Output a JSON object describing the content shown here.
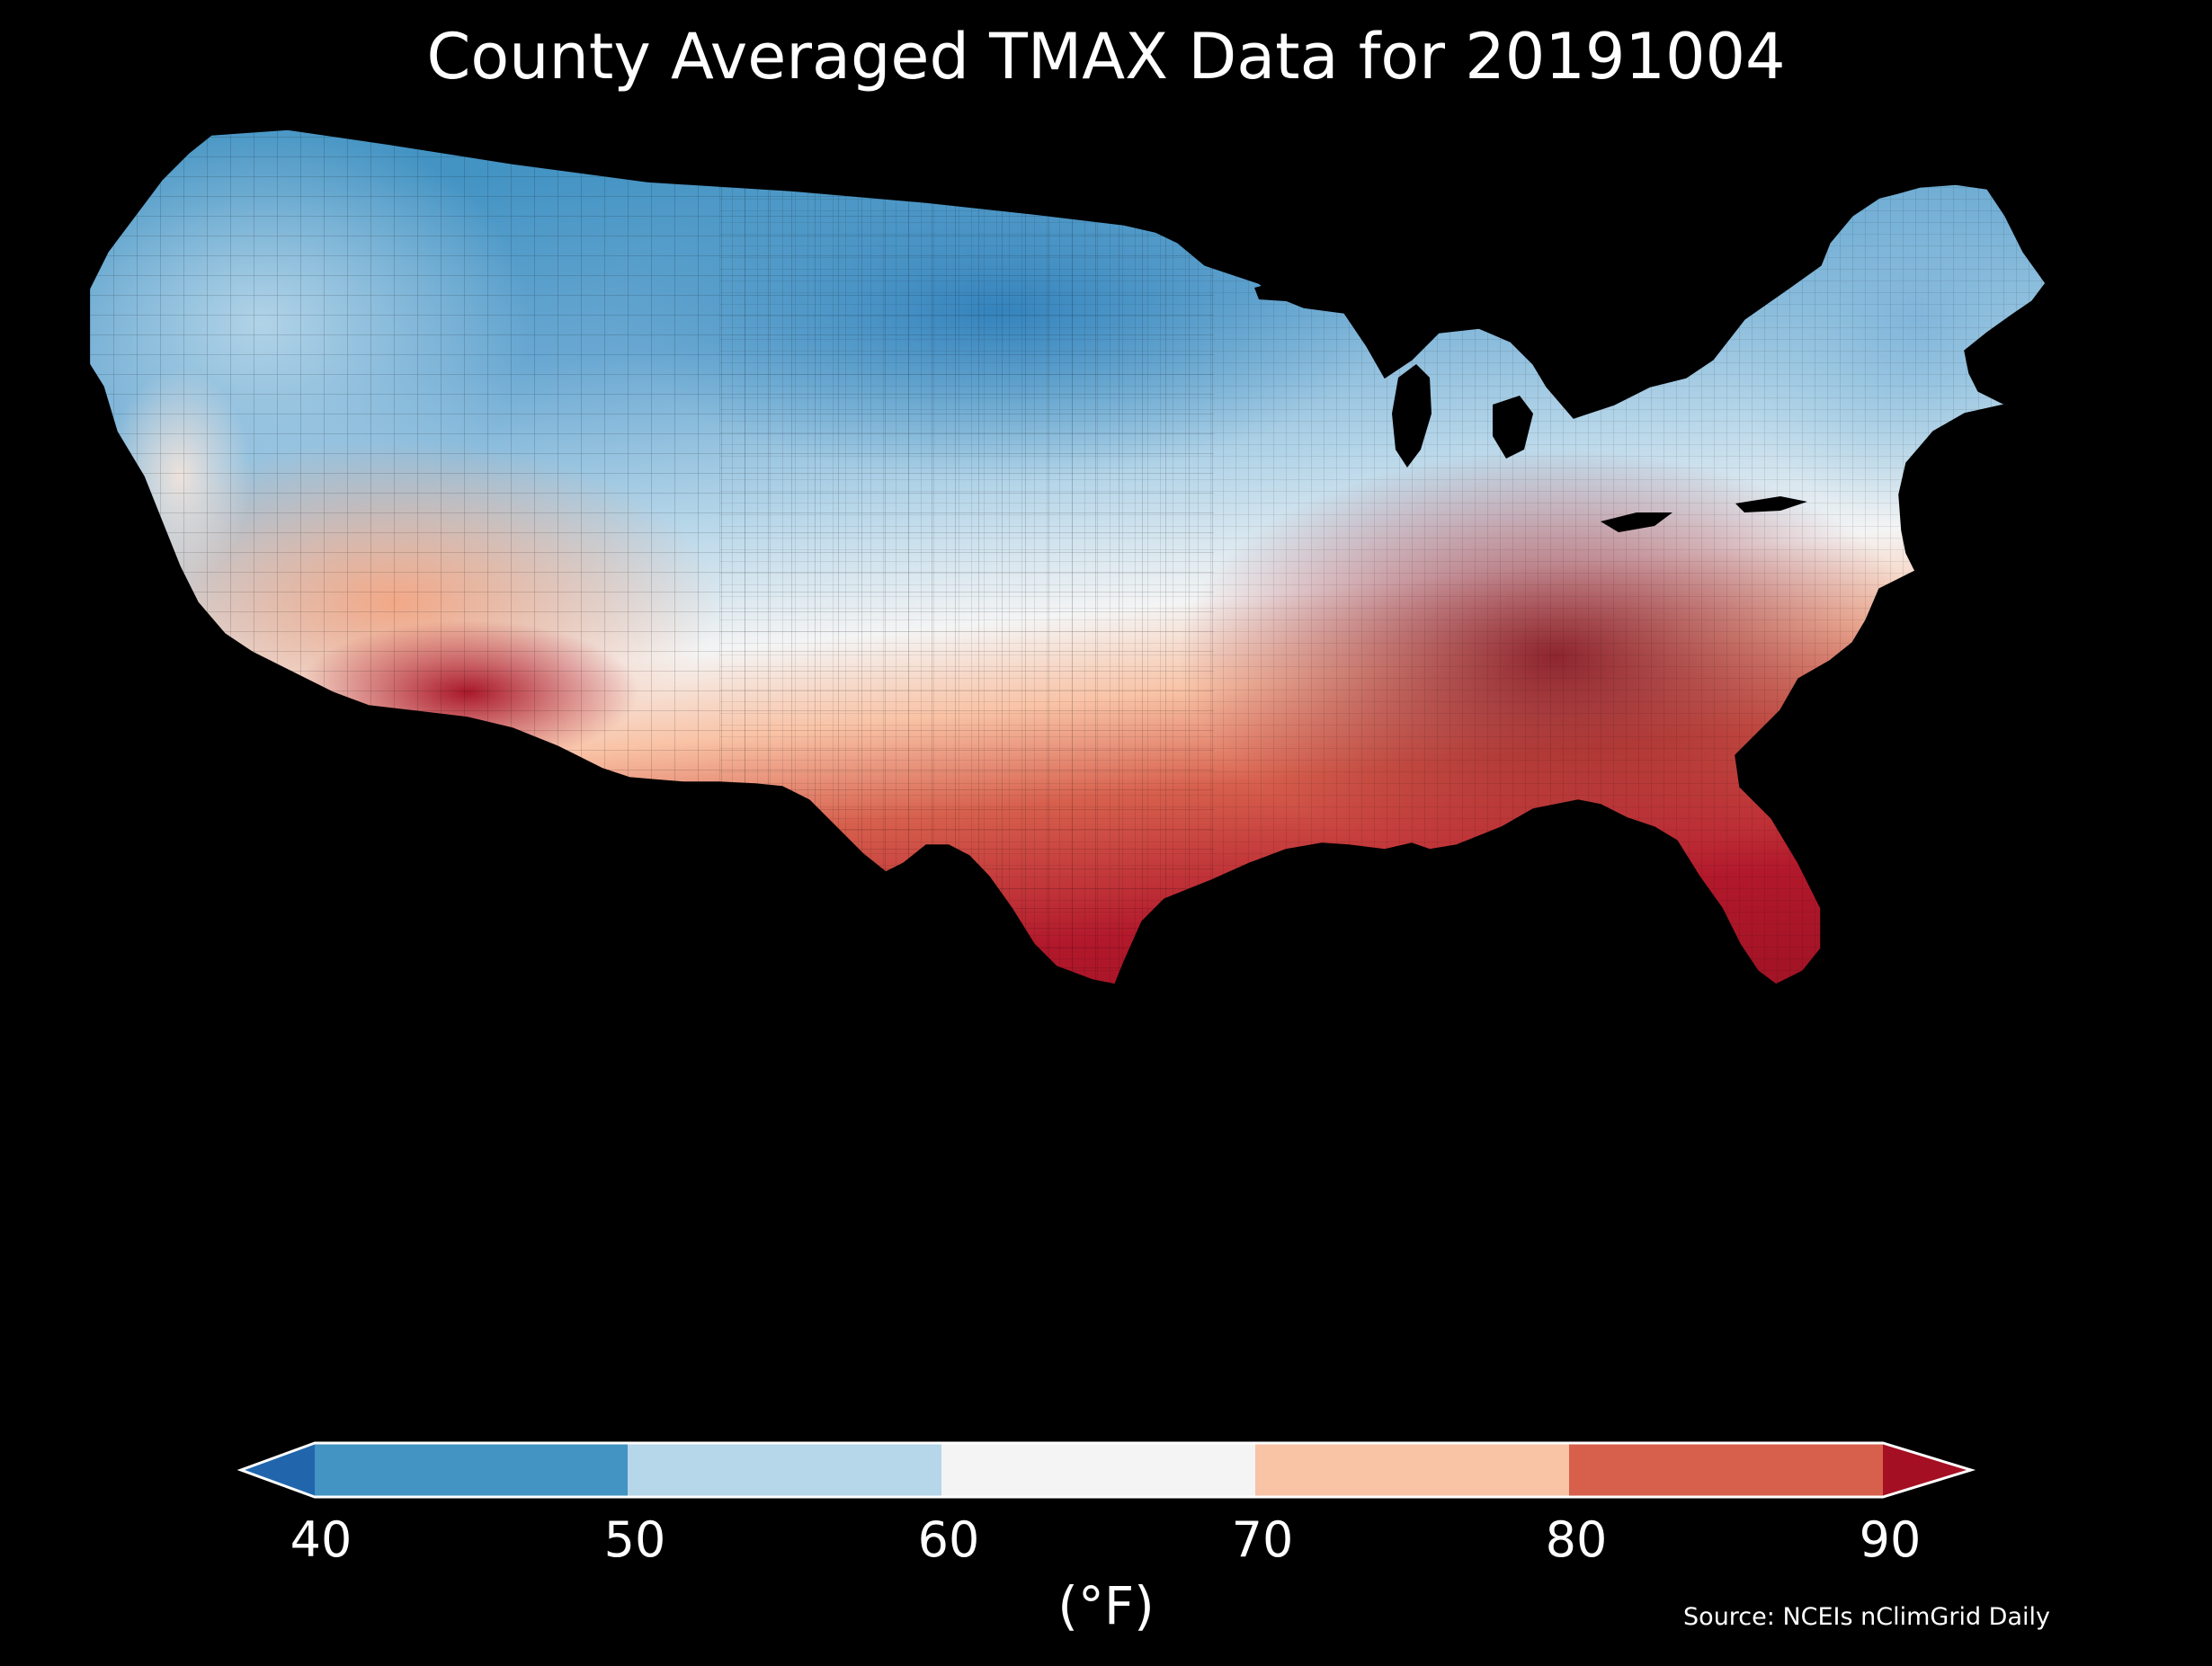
{
  "title": "County Averaged TMAX Data for 20191004",
  "colorbar": {
    "ticks": [
      "40",
      "50",
      "60",
      "70",
      "80",
      "90"
    ],
    "unit": "(°F)",
    "under_color": "#2166ac",
    "over_color": "#a50f23",
    "bins": [
      {
        "range": [
          40,
          50
        ],
        "color": "#4393c3"
      },
      {
        "range": [
          50,
          60
        ],
        "color": "#b6d6e9"
      },
      {
        "range": [
          60,
          70
        ],
        "color": "#f4f4f4"
      },
      {
        "range": [
          70,
          80
        ],
        "color": "#f9c3a6"
      },
      {
        "range": [
          80,
          90
        ],
        "color": "#d7604d"
      }
    ]
  },
  "source": "Source: NCEIs nClimGrid Daily",
  "background": "#000000",
  "map": {
    "region": "Contiguous United States",
    "variable": "TMAX",
    "date": "20191004",
    "regional_pattern": [
      {
        "region": "Pacific Northwest",
        "color": "#b6d6e9"
      },
      {
        "region": "Northern Plains / Upper Midwest",
        "color": "#4393c3"
      },
      {
        "region": "New England",
        "color": "#92c5de"
      },
      {
        "region": "Great Basin / Central Rockies",
        "color": "#f4f4f4"
      },
      {
        "region": "California / Desert Southwest",
        "color": "#f4a582"
      },
      {
        "region": "Southern Arizona",
        "color": "#b2182b"
      },
      {
        "region": "Texas / Gulf Coast",
        "color": "#c62d35"
      },
      {
        "region": "Southeast / Mid-Atlantic",
        "color": "#8b0d1e"
      }
    ]
  }
}
